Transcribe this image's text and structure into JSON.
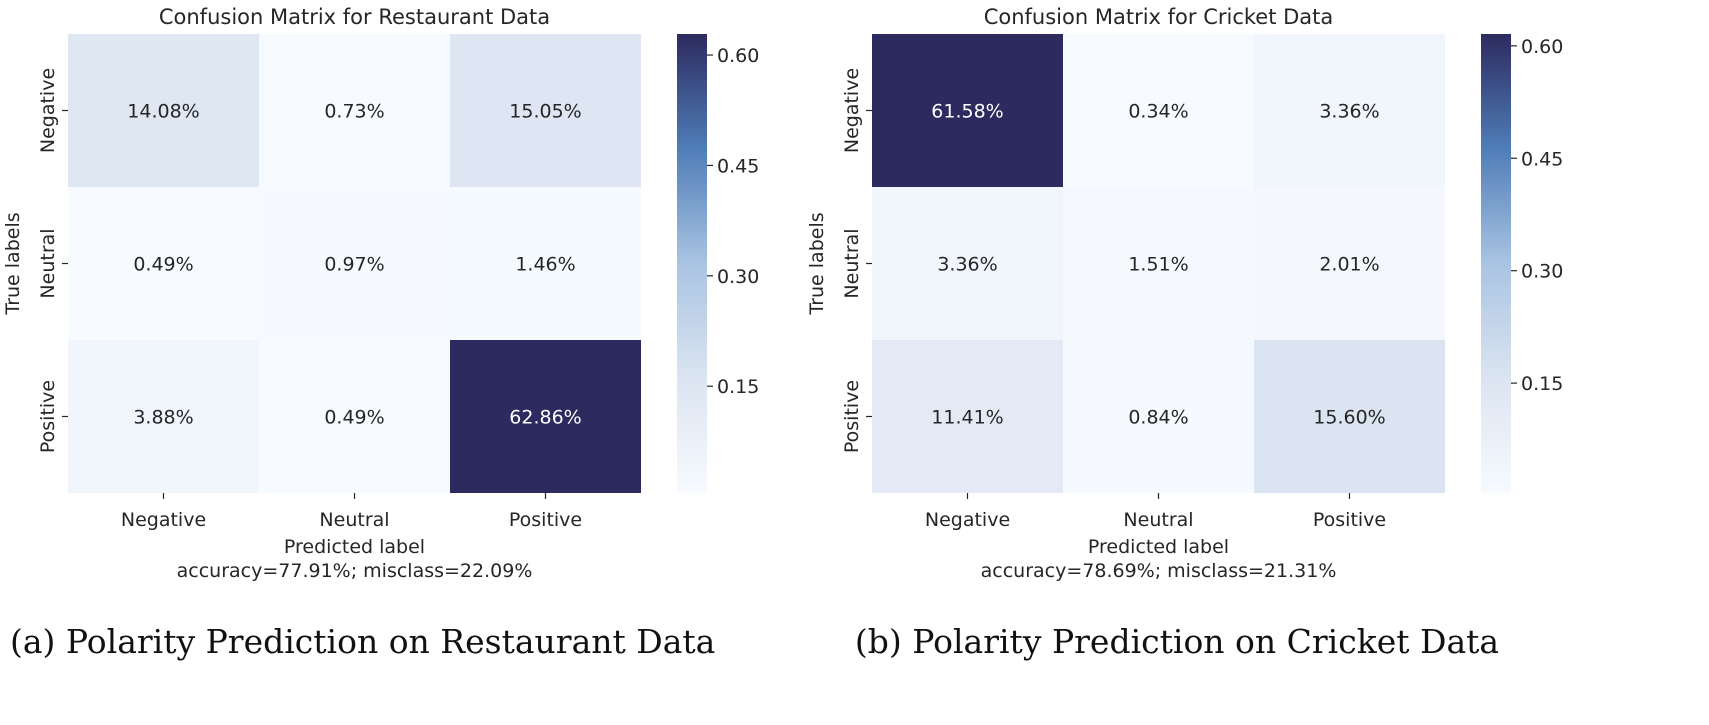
{
  "chart_data": [
    {
      "type": "heatmap",
      "title": "Confusion Matrix for Restaurant Data",
      "xlabel": "Predicted label",
      "ylabel": "True labels",
      "x_categories": [
        "Negative",
        "Neutral",
        "Positive"
      ],
      "y_categories": [
        "Negative",
        "Neutral",
        "Positive"
      ],
      "values": [
        [
          14.08,
          0.73,
          15.05
        ],
        [
          0.49,
          0.97,
          1.46
        ],
        [
          3.88,
          0.49,
          62.86
        ]
      ],
      "cell_labels": [
        [
          "14.08%",
          "0.73%",
          "15.05%"
        ],
        [
          "0.49%",
          "0.97%",
          "1.46%"
        ],
        [
          "3.88%",
          "0.49%",
          "62.86%"
        ]
      ],
      "footer": "accuracy=77.91%; misclass=22.09%",
      "colorbar": {
        "min": 0.0049,
        "max": 0.6286,
        "ticks": [
          0.15,
          0.3,
          0.45,
          0.6
        ],
        "tick_labels": [
          "0.15",
          "0.30",
          "0.45",
          "0.60"
        ]
      },
      "caption": "(a) Polarity Prediction on Restaurant Data"
    },
    {
      "type": "heatmap",
      "title": "Confusion Matrix for Cricket Data",
      "xlabel": "Predicted label",
      "ylabel": "True labels",
      "x_categories": [
        "Negative",
        "Neutral",
        "Positive"
      ],
      "y_categories": [
        "Negative",
        "Neutral",
        "Positive"
      ],
      "values": [
        [
          61.58,
          0.34,
          3.36
        ],
        [
          3.36,
          1.51,
          2.01
        ],
        [
          11.41,
          0.84,
          15.6
        ]
      ],
      "cell_labels": [
        [
          "61.58%",
          "0.34%",
          "3.36%"
        ],
        [
          "3.36%",
          "1.51%",
          "2.01%"
        ],
        [
          "11.41%",
          "0.84%",
          "15.60%"
        ]
      ],
      "footer": "accuracy=78.69%; misclass=21.31%",
      "colorbar": {
        "min": 0.0034,
        "max": 0.6158,
        "ticks": [
          0.15,
          0.3,
          0.45,
          0.6
        ],
        "tick_labels": [
          "0.15",
          "0.30",
          "0.45",
          "0.60"
        ]
      },
      "caption": "(b) Polarity Prediction on Cricket Data"
    }
  ],
  "colormap": {
    "low": "#f7fbff",
    "mid1": "#dbe4f1",
    "mid2": "#a9c4e2",
    "mid3": "#4f7db8",
    "high": "#2d2a5f"
  }
}
